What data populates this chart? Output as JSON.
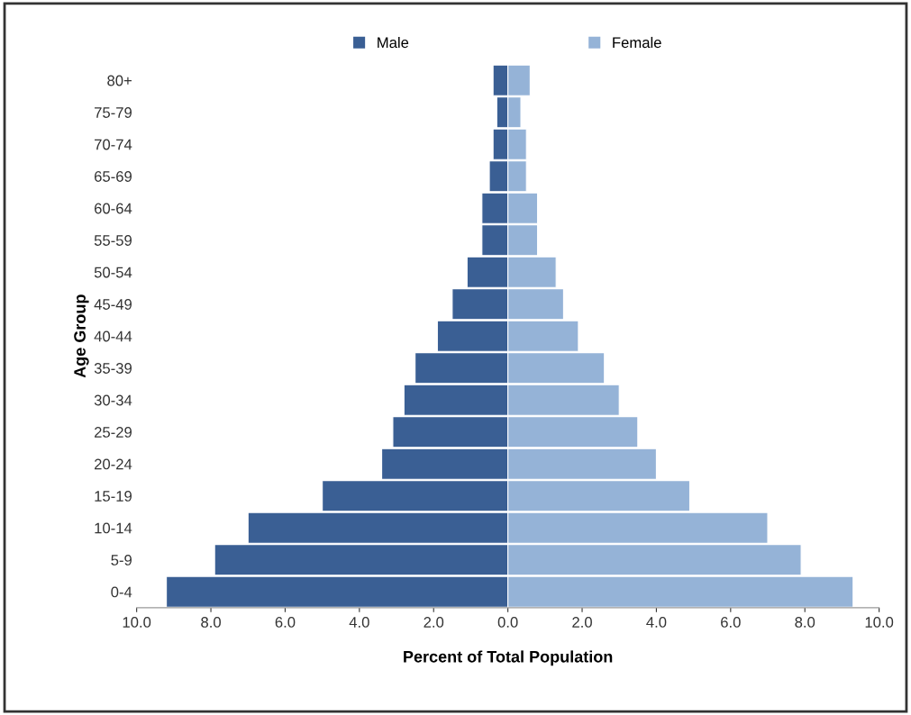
{
  "chart_data": {
    "type": "bar",
    "orientation": "horizontal",
    "xlabel": "Percent of Total Population",
    "ylabel": "Age Group",
    "categories": [
      "80+",
      "75-79",
      "70-74",
      "65-69",
      "60-64",
      "55-59",
      "50-54",
      "45-49",
      "40-44",
      "35-39",
      "30-34",
      "25-29",
      "20-24",
      "15-19",
      "10-14",
      "5-9",
      "0-4"
    ],
    "series": [
      {
        "name": "Male",
        "color": "#3a5f94",
        "values": [
          -0.4,
          -0.3,
          -0.4,
          -0.5,
          -0.7,
          -0.7,
          -1.1,
          -1.5,
          -1.9,
          -2.5,
          -2.8,
          -3.1,
          -3.4,
          -5.0,
          -7.0,
          -7.9,
          -9.2
        ]
      },
      {
        "name": "Female",
        "color": "#95b3d7",
        "values": [
          0.6,
          0.35,
          0.5,
          0.5,
          0.8,
          0.8,
          1.3,
          1.5,
          1.9,
          2.6,
          3.0,
          3.5,
          4.0,
          4.9,
          7.0,
          7.9,
          9.3
        ]
      }
    ],
    "xlim": [
      -10,
      10
    ],
    "xticks": [
      {
        "value": -10,
        "label": "10.0"
      },
      {
        "value": -8,
        "label": "8.0"
      },
      {
        "value": -6,
        "label": "6.0"
      },
      {
        "value": -4,
        "label": "4.0"
      },
      {
        "value": -2,
        "label": "2.0"
      },
      {
        "value": 0,
        "label": "0.0"
      },
      {
        "value": 2,
        "label": "2.0"
      },
      {
        "value": 4,
        "label": "4.0"
      },
      {
        "value": 6,
        "label": "6.0"
      },
      {
        "value": 8,
        "label": "8.0"
      },
      {
        "value": 10,
        "label": "10.0"
      }
    ],
    "stacked": true,
    "grid": false,
    "legend": "top"
  }
}
